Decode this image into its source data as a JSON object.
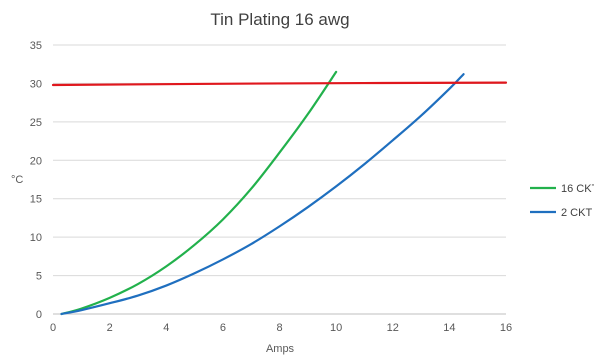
{
  "chart_data": {
    "type": "line",
    "title": "Tin Plating 16 awg",
    "xlabel": "Amps",
    "ylabel": "°C",
    "xlim": [
      0,
      16
    ],
    "ylim": [
      0,
      35
    ],
    "x_ticks": [
      0,
      2,
      4,
      6,
      8,
      10,
      12,
      14,
      16
    ],
    "y_ticks": [
      0,
      5,
      10,
      15,
      20,
      25,
      30,
      35
    ],
    "grid": "horizontal",
    "legend_position": "right",
    "series": [
      {
        "name": "16 CKT",
        "color": "#22b14c",
        "points": [
          [
            0.3,
            0
          ],
          [
            1,
            0.7
          ],
          [
            2,
            2.1
          ],
          [
            3,
            3.9
          ],
          [
            4,
            6.2
          ],
          [
            5,
            9.0
          ],
          [
            6,
            12.3
          ],
          [
            7,
            16.3
          ],
          [
            8,
            21.0
          ],
          [
            9,
            26.0
          ],
          [
            10,
            31.5
          ]
        ]
      },
      {
        "name": "2 CKT",
        "color": "#1f6fbf",
        "points": [
          [
            0.3,
            0
          ],
          [
            1,
            0.5
          ],
          [
            2,
            1.4
          ],
          [
            3,
            2.4
          ],
          [
            4,
            3.7
          ],
          [
            5,
            5.3
          ],
          [
            6,
            7.1
          ],
          [
            7,
            9.1
          ],
          [
            8,
            11.4
          ],
          [
            9,
            13.9
          ],
          [
            10,
            16.6
          ],
          [
            11,
            19.5
          ],
          [
            12,
            22.6
          ],
          [
            13,
            25.8
          ],
          [
            14,
            29.3
          ],
          [
            14.5,
            31.2
          ]
        ]
      },
      {
        "name": "",
        "color": "#e0171d",
        "points": [
          [
            0,
            29.8
          ],
          [
            8,
            30.0
          ],
          [
            16,
            30.1
          ]
        ]
      }
    ]
  }
}
